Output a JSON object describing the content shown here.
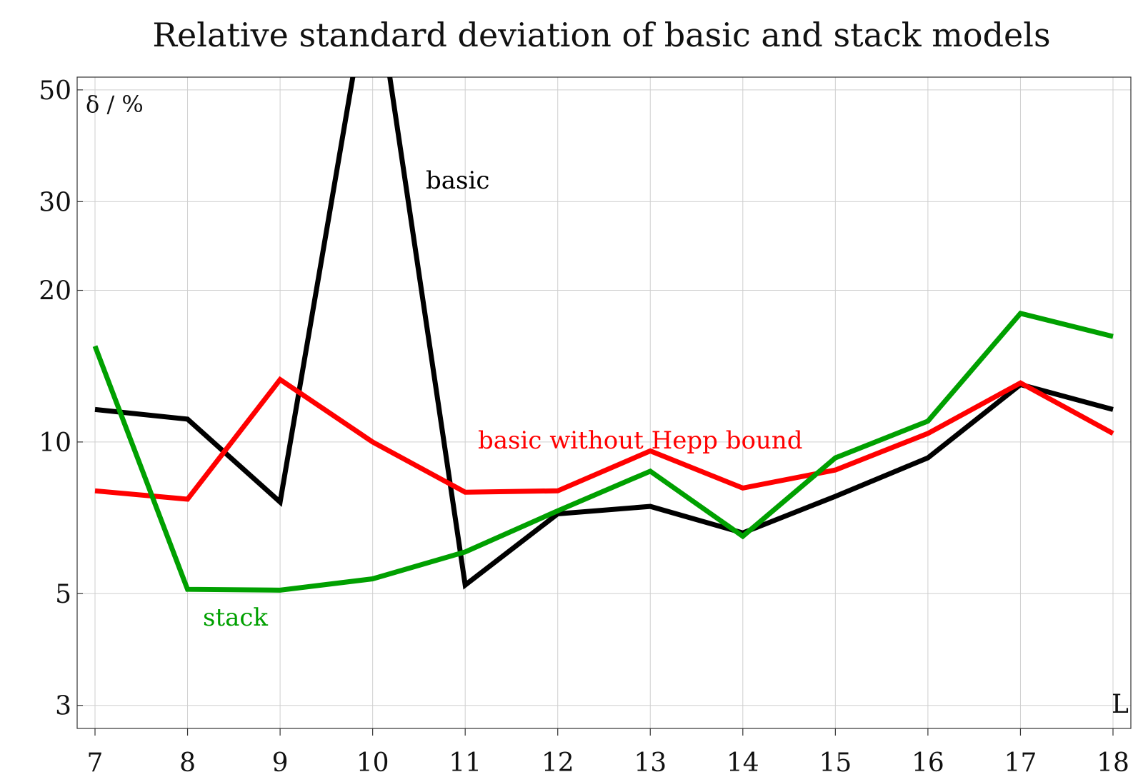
{
  "chart_data": {
    "type": "line",
    "title": "Relative standard deviation of basic and stack models",
    "ylabel": "δ / %",
    "xlabel": "L",
    "x": [
      7,
      8,
      9,
      10,
      11,
      12,
      13,
      14,
      15,
      16,
      17,
      18
    ],
    "yscale": "log",
    "ylim": [
      2.7,
      53
    ],
    "y_ticks": [
      3,
      5,
      10,
      20,
      30,
      50
    ],
    "grid": true,
    "series": [
      {
        "name": "basic",
        "color": "#000000",
        "values": [
          11.6,
          11.1,
          7.6,
          90,
          5.2,
          7.2,
          7.45,
          6.6,
          7.8,
          9.3,
          13.0,
          11.6
        ]
      },
      {
        "name": "basic without Hepp bound",
        "color": "#ff0000",
        "values": [
          8.0,
          7.7,
          13.3,
          10.0,
          7.95,
          8.0,
          9.6,
          8.1,
          8.8,
          10.4,
          13.1,
          10.4
        ]
      },
      {
        "name": "stack",
        "color": "#00a000",
        "values": [
          15.5,
          5.1,
          5.08,
          5.35,
          6.05,
          7.3,
          8.75,
          6.5,
          9.3,
          11.0,
          18.0,
          16.2
        ]
      }
    ],
    "annotations": [
      {
        "text": "basic",
        "color": "#000000"
      },
      {
        "text": "basic without Hepp bound",
        "color": "#ff0000"
      },
      {
        "text": "stack",
        "color": "#00a000"
      }
    ]
  }
}
